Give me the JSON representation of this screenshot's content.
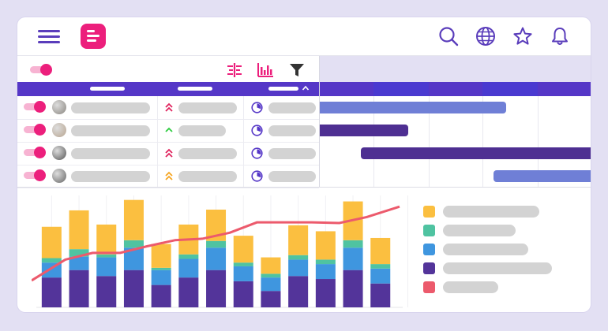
{
  "app": {
    "logo_icon": "app-logo",
    "menu_icon": "hamburger-menu-icon",
    "top_icons": [
      "search-icon",
      "globe-icon",
      "star-icon",
      "bell-icon"
    ],
    "accent": "#ec1f7c",
    "primary": "#5537c7"
  },
  "grid": {
    "toolbar_icons": [
      "group-columns-icon",
      "histogram-icon",
      "filter-icon"
    ],
    "master_toggle_on": true,
    "sort_direction": "ascending",
    "rows": [
      {
        "toggle_on": true,
        "avatar_icon": "avatar-photo-1",
        "priority": "high",
        "priority_color": "#e0245e",
        "progress_icon": "progress-pie-icon"
      },
      {
        "toggle_on": true,
        "avatar_icon": "avatar-photo-2",
        "priority": "low",
        "priority_color": "#2ecc40",
        "progress_icon": "progress-pie-icon"
      },
      {
        "toggle_on": true,
        "avatar_icon": "avatar-photo-3",
        "priority": "high",
        "priority_color": "#e0245e",
        "progress_icon": "progress-pie-icon"
      },
      {
        "toggle_on": true,
        "avatar_icon": "avatar-photo-4",
        "priority": "medium",
        "priority_color": "#f5a623",
        "progress_icon": "progress-pie-icon"
      }
    ]
  },
  "gantt": {
    "bars": [
      {
        "row": 0,
        "color": "#6f7fd6"
      },
      {
        "row": 1,
        "color": "#4e2f92"
      },
      {
        "row": 2,
        "color": "#4e2f92"
      },
      {
        "row": 3,
        "color": "#6f7fd6"
      }
    ]
  },
  "chart_data": {
    "type": "bar",
    "stacked": true,
    "title": "",
    "xlabel": "",
    "ylabel": "",
    "grid": true,
    "legend_position": "right",
    "categories": [
      "",
      "",
      "",
      "",
      "",
      "",
      "",
      "",
      "",
      "",
      "",
      "",
      "",
      ""
    ],
    "ylim": [
      0,
      150
    ],
    "series": [
      {
        "color": "#53349a",
        "values": [
          40,
          50,
          42,
          50,
          30,
          40,
          50,
          35,
          22,
          42,
          38,
          50,
          32,
          0
        ]
      },
      {
        "color": "#3f96df",
        "values": [
          20,
          18,
          25,
          30,
          20,
          25,
          30,
          20,
          18,
          22,
          20,
          30,
          20,
          0
        ]
      },
      {
        "color": "#4fc3a1",
        "values": [
          6,
          10,
          4,
          10,
          3,
          6,
          9,
          5,
          5,
          6,
          6,
          10,
          6,
          0
        ]
      },
      {
        "color": "#fbbf40",
        "values": [
          42,
          52,
          40,
          54,
          32,
          40,
          42,
          36,
          22,
          40,
          38,
          52,
          35,
          0
        ]
      }
    ],
    "line": {
      "color": "#ec5a6c",
      "values": [
        36,
        64,
        73,
        73,
        82,
        90,
        92,
        100,
        114,
        114,
        114,
        113,
        121,
        135
      ]
    },
    "legend_colors": [
      "#fbbf40",
      "#4fc3a1",
      "#3f96df",
      "#53349a",
      "#ec5a6c"
    ]
  }
}
